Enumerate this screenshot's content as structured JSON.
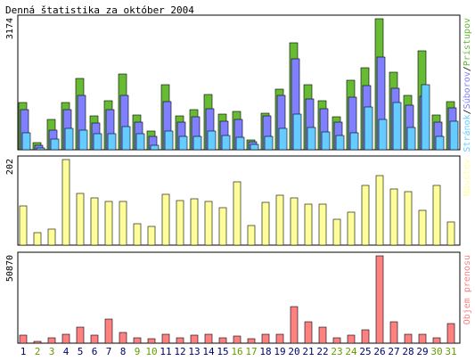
{
  "title": "Denná štatistika za október 2004",
  "colors": {
    "visits": "#ffff99",
    "transfer": "#ff8080",
    "accesses": "#66bb33",
    "files": "#8080ff",
    "pages": "#66ccff",
    "weekend_day_label": "#669900",
    "weekday_label": "#000066",
    "grid_border": "#000000"
  },
  "chart_data": [
    {
      "type": "bar",
      "panel": "top",
      "ymax_label": "3174",
      "ylim": [
        0,
        3174
      ],
      "legend_parts": [
        "Stránok",
        "Súborov",
        "Prístupov"
      ],
      "categories": [
        "1",
        "2",
        "3",
        "4",
        "5",
        "6",
        "7",
        "8",
        "9",
        "10",
        "11",
        "12",
        "13",
        "14",
        "15",
        "16",
        "17",
        "18",
        "19",
        "20",
        "21",
        "22",
        "23",
        "24",
        "25",
        "26",
        "27",
        "28",
        "29",
        "30",
        "31"
      ],
      "series": [
        {
          "name": "Prístupov",
          "values": [
            1150,
            180,
            730,
            1150,
            1730,
            810,
            1190,
            1830,
            840,
            460,
            1570,
            830,
            970,
            1340,
            870,
            930,
            240,
            890,
            1470,
            2600,
            1570,
            1180,
            800,
            1690,
            1980,
            3174,
            1880,
            1310,
            2400,
            840,
            1160
          ]
        },
        {
          "name": "Súborov",
          "values": [
            980,
            100,
            470,
            980,
            1320,
            640,
            970,
            1320,
            660,
            320,
            1170,
            680,
            800,
            1000,
            690,
            740,
            190,
            810,
            1310,
            2200,
            1230,
            990,
            670,
            1280,
            1560,
            2250,
            1500,
            1080,
            1300,
            660,
            1010
          ]
        },
        {
          "name": "Stránok",
          "values": [
            400,
            50,
            260,
            520,
            480,
            390,
            390,
            570,
            380,
            100,
            460,
            320,
            320,
            450,
            350,
            300,
            130,
            330,
            510,
            870,
            530,
            430,
            350,
            420,
            1040,
            730,
            1140,
            550,
            1570,
            320,
            700
          ]
        }
      ]
    },
    {
      "type": "bar",
      "panel": "middle",
      "ymax_label": "202",
      "ylim": [
        0,
        202
      ],
      "legend": "Návštev",
      "categories": [
        "1",
        "2",
        "3",
        "4",
        "5",
        "6",
        "7",
        "8",
        "9",
        "10",
        "11",
        "12",
        "13",
        "14",
        "15",
        "16",
        "17",
        "18",
        "19",
        "20",
        "21",
        "22",
        "23",
        "24",
        "25",
        "26",
        "27",
        "28",
        "29",
        "30",
        "31"
      ],
      "series": [
        {
          "name": "Návštev",
          "values": [
            93,
            29,
            37,
            202,
            122,
            112,
            104,
            104,
            50,
            44,
            120,
            105,
            110,
            104,
            89,
            150,
            47,
            102,
            118,
            112,
            96,
            96,
            62,
            78,
            142,
            165,
            132,
            127,
            82,
            142,
            55
          ]
        }
      ]
    },
    {
      "type": "bar",
      "panel": "bottom",
      "ymax_label": "50870",
      "ylim": [
        0,
        50870
      ],
      "legend": "Objem prenosu",
      "categories": [
        "1",
        "2",
        "3",
        "4",
        "5",
        "6",
        "7",
        "8",
        "9",
        "10",
        "11",
        "12",
        "13",
        "14",
        "15",
        "16",
        "17",
        "18",
        "19",
        "20",
        "21",
        "22",
        "23",
        "24",
        "25",
        "26",
        "27",
        "28",
        "29",
        "30",
        "31"
      ],
      "series": [
        {
          "name": "Objem prenosu",
          "values": [
            4700,
            900,
            3200,
            5200,
            9100,
            4700,
            14000,
            6200,
            3200,
            2600,
            5200,
            3200,
            4700,
            5200,
            3200,
            3900,
            2600,
            5200,
            5200,
            21200,
            12500,
            9100,
            3200,
            4700,
            7800,
            50870,
            12500,
            5200,
            5200,
            3200,
            11500
          ]
        }
      ]
    }
  ],
  "day_labels": [
    {
      "text": "1",
      "weekend": false
    },
    {
      "text": "2",
      "weekend": true
    },
    {
      "text": "3",
      "weekend": true
    },
    {
      "text": "4",
      "weekend": false
    },
    {
      "text": "5",
      "weekend": false
    },
    {
      "text": "6",
      "weekend": false
    },
    {
      "text": "7",
      "weekend": false
    },
    {
      "text": "8",
      "weekend": false
    },
    {
      "text": "9",
      "weekend": true
    },
    {
      "text": "10",
      "weekend": true
    },
    {
      "text": "11",
      "weekend": false
    },
    {
      "text": "12",
      "weekend": false
    },
    {
      "text": "13",
      "weekend": false
    },
    {
      "text": "14",
      "weekend": false
    },
    {
      "text": "15",
      "weekend": false
    },
    {
      "text": "16",
      "weekend": true
    },
    {
      "text": "17",
      "weekend": true
    },
    {
      "text": "18",
      "weekend": false
    },
    {
      "text": "19",
      "weekend": false
    },
    {
      "text": "20",
      "weekend": false
    },
    {
      "text": "21",
      "weekend": false
    },
    {
      "text": "22",
      "weekend": false
    },
    {
      "text": "23",
      "weekend": true
    },
    {
      "text": "24",
      "weekend": true
    },
    {
      "text": "25",
      "weekend": false
    },
    {
      "text": "26",
      "weekend": false
    },
    {
      "text": "27",
      "weekend": false
    },
    {
      "text": "28",
      "weekend": false
    },
    {
      "text": "29",
      "weekend": false
    },
    {
      "text": "30",
      "weekend": true
    },
    {
      "text": "31",
      "weekend": true
    }
  ]
}
